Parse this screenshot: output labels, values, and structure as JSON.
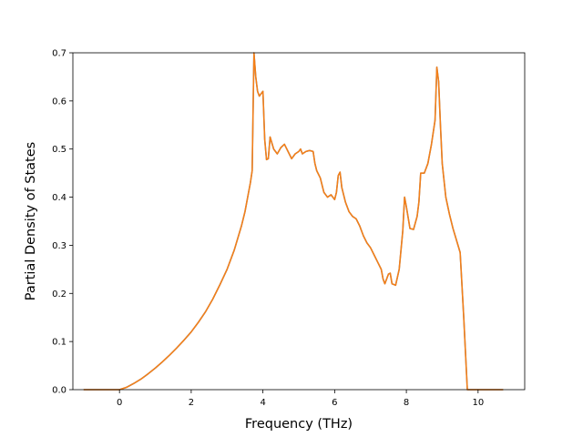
{
  "chart_data": {
    "type": "line",
    "title": "",
    "xlabel": "Frequency (THz)",
    "ylabel": "Partial Density of States",
    "xlim": [
      -1.3,
      11.3
    ],
    "ylim": [
      0.0,
      0.7
    ],
    "x_ticks": [
      0,
      2,
      4,
      6,
      8,
      10
    ],
    "y_ticks": [
      0.0,
      0.1,
      0.2,
      0.3,
      0.4,
      0.5,
      0.6,
      0.7
    ],
    "grid": false,
    "legend": "none",
    "series": [
      {
        "color": "#ff7f0e",
        "overlay_color": "#7f7f7f",
        "x": [
          -1.0,
          -0.5,
          0.0,
          0.2,
          0.4,
          0.6,
          0.8,
          1.0,
          1.2,
          1.4,
          1.6,
          1.8,
          2.0,
          2.2,
          2.4,
          2.6,
          2.8,
          3.0,
          3.2,
          3.4,
          3.5,
          3.6,
          3.65,
          3.7,
          3.75,
          3.8,
          3.85,
          3.9,
          4.0,
          4.05,
          4.1,
          4.15,
          4.2,
          4.3,
          4.4,
          4.5,
          4.6,
          4.7,
          4.8,
          4.9,
          5.0,
          5.05,
          5.1,
          5.2,
          5.3,
          5.4,
          5.45,
          5.5,
          5.6,
          5.7,
          5.8,
          5.9,
          6.0,
          6.05,
          6.1,
          6.15,
          6.2,
          6.3,
          6.4,
          6.5,
          6.6,
          6.7,
          6.8,
          6.9,
          7.0,
          7.1,
          7.2,
          7.3,
          7.35,
          7.4,
          7.5,
          7.55,
          7.6,
          7.7,
          7.8,
          7.9,
          7.95,
          8.0,
          8.1,
          8.2,
          8.3,
          8.35,
          8.4,
          8.5,
          8.6,
          8.7,
          8.8,
          8.85,
          8.9,
          8.95,
          9.0,
          9.1,
          9.2,
          9.3,
          9.4,
          9.5,
          9.6,
          9.7,
          9.75,
          10.0,
          10.7
        ],
        "y": [
          0.0,
          0.0,
          0.0,
          0.005,
          0.013,
          0.022,
          0.033,
          0.045,
          0.058,
          0.072,
          0.087,
          0.103,
          0.12,
          0.14,
          0.162,
          0.188,
          0.218,
          0.25,
          0.29,
          0.34,
          0.37,
          0.41,
          0.43,
          0.455,
          0.7,
          0.65,
          0.62,
          0.61,
          0.62,
          0.52,
          0.478,
          0.48,
          0.525,
          0.5,
          0.49,
          0.503,
          0.51,
          0.495,
          0.48,
          0.49,
          0.495,
          0.5,
          0.49,
          0.495,
          0.497,
          0.495,
          0.47,
          0.455,
          0.44,
          0.41,
          0.4,
          0.405,
          0.395,
          0.41,
          0.445,
          0.452,
          0.42,
          0.39,
          0.37,
          0.36,
          0.355,
          0.34,
          0.32,
          0.305,
          0.295,
          0.28,
          0.265,
          0.25,
          0.23,
          0.22,
          0.24,
          0.242,
          0.22,
          0.217,
          0.25,
          0.33,
          0.4,
          0.38,
          0.335,
          0.333,
          0.36,
          0.39,
          0.45,
          0.45,
          0.47,
          0.51,
          0.56,
          0.67,
          0.64,
          0.55,
          0.47,
          0.4,
          0.365,
          0.335,
          0.31,
          0.285,
          0.15,
          0.0,
          0.0,
          0.0,
          0.0
        ]
      }
    ]
  }
}
